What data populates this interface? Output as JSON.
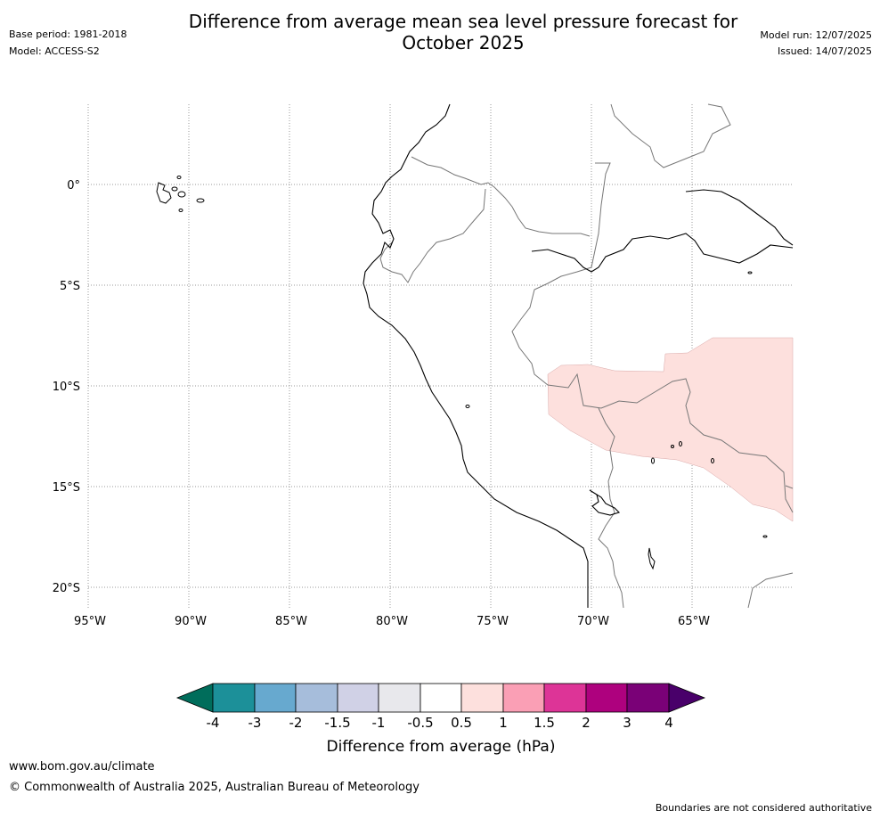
{
  "header": {
    "title_line1": "Difference from average mean sea level pressure forecast for",
    "title_line2": "October 2025",
    "base_period": "Base period: 1981-2018",
    "model": "Model: ACCESS-S2",
    "model_run": "Model run: 12/07/2025",
    "issued": "Issued: 14/07/2025"
  },
  "map": {
    "lat_labels": [
      "0°",
      "5°S",
      "10°S",
      "15°S",
      "20°S"
    ],
    "lon_labels": [
      "95°W",
      "90°W",
      "85°W",
      "80°W",
      "75°W",
      "70°W",
      "65°W"
    ],
    "anomaly_region": {
      "category": "0.5 to 1",
      "color": "#fde0dd"
    }
  },
  "colorbar": {
    "title": "Difference from average (hPa)",
    "ticks": [
      "-4",
      "-3",
      "-2",
      "-1.5",
      "-1",
      "-0.5",
      "0.5",
      "1",
      "1.5",
      "2",
      "3",
      "4"
    ],
    "colors": [
      "#006d5b",
      "#1c9099",
      "#67a9cf",
      "#a6bddb",
      "#d0d1e6",
      "#e8e8ec",
      "#ffffff",
      "#fde0dd",
      "#fa9fb5",
      "#dd3497",
      "#ae017e",
      "#7a0177",
      "#49006a"
    ]
  },
  "footer": {
    "url": "www.bom.gov.au/climate",
    "copyright": "© Commonwealth of Australia 2025, Australian Bureau of Meteorology",
    "disclaimer": "Boundaries are not considered authoritative"
  }
}
